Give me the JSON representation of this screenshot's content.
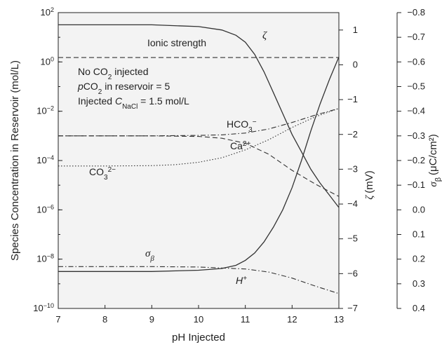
{
  "chart_data": {
    "type": "line",
    "title": "",
    "xlabel": "pH Injected",
    "xlim": [
      7,
      13
    ],
    "x_ticks": [
      "7",
      "8",
      "9",
      "10",
      "11",
      "12",
      "13"
    ],
    "axes": {
      "left": {
        "label_main": "Species Concentration in Reservoir (mol/L)",
        "scale": "log",
        "lim": [
          1e-10,
          100
        ],
        "ticks": [
          {
            "base": "10",
            "exp": "2",
            "value": 100
          },
          {
            "base": "10",
            "exp": "0",
            "value": 1
          },
          {
            "base": "10",
            "exp": "−2",
            "value": 0.01
          },
          {
            "base": "10",
            "exp": "−4",
            "value": 0.0001
          },
          {
            "base": "10",
            "exp": "−6",
            "value": 1e-06
          },
          {
            "base": "10",
            "exp": "−8",
            "value": 1e-08
          },
          {
            "base": "10",
            "exp": "−10",
            "value": 1e-10
          }
        ]
      },
      "middle": {
        "label_symbol": "ζ",
        "label_unit": "(mV)",
        "scale": "linear",
        "lim": [
          -7,
          1.5
        ],
        "ticks": [
          "1",
          "0",
          "−1",
          "−2",
          "−3",
          "−4",
          "−5",
          "−6",
          "−7"
        ],
        "tick_values": [
          1,
          0,
          -1,
          -2,
          -3,
          -4,
          -5,
          -6,
          -7
        ]
      },
      "right": {
        "label_symbol": "σ",
        "label_sub": "β",
        "label_unit": "(μC/cm²)",
        "scale": "linear",
        "inverted": true,
        "lim": [
          0.4,
          -0.8
        ],
        "ticks": [
          "−0.8",
          "−0.7",
          "−0.6",
          "−0.5",
          "−0.4",
          "−0.3",
          "−0.2",
          "−0.1",
          "0.0",
          "0.1",
          "0.2",
          "0.3",
          "0.4"
        ],
        "tick_values": [
          -0.8,
          -0.7,
          -0.6,
          -0.5,
          -0.4,
          -0.3,
          -0.2,
          -0.1,
          0.0,
          0.1,
          0.2,
          0.3,
          0.4
        ]
      }
    },
    "annotations": {
      "line1": "No CO",
      "line1_sub": "2",
      "line1_end": " injected",
      "line2_italic": "p",
      "line2_a": "CO",
      "line2_sub": "2",
      "line2_end": " in reservoir = 5",
      "line3_a": "Injected ",
      "line3_italic": "C",
      "line3_sub": "NaCl",
      "line3_end": " = 1.5 mol/L"
    },
    "series": [
      {
        "name": "Ionic strength",
        "axis": "left",
        "style": "dashed",
        "x": [
          7,
          13
        ],
        "y": [
          1.5,
          1.5
        ]
      },
      {
        "name": "ζ",
        "axis": "middle",
        "style": "solid",
        "x": [
          7,
          9,
          10,
          10.5,
          10.8,
          11,
          11.2,
          11.4,
          11.6,
          11.8,
          12,
          12.2,
          12.4,
          12.6,
          12.8,
          13
        ],
        "y": [
          1.15,
          1.15,
          1.1,
          1.0,
          0.85,
          0.65,
          0.3,
          -0.2,
          -0.8,
          -1.4,
          -2.0,
          -2.5,
          -3.0,
          -3.4,
          -3.75,
          -4.1
        ]
      },
      {
        "name": "σβ",
        "axis": "right",
        "style": "solid",
        "x": [
          7,
          9,
          10,
          10.5,
          10.8,
          11,
          11.2,
          11.4,
          11.6,
          11.8,
          12,
          12.2,
          12.4,
          12.6,
          12.8,
          13
        ],
        "y": [
          0.25,
          0.25,
          0.245,
          0.238,
          0.225,
          0.205,
          0.175,
          0.13,
          0.07,
          0.0,
          -0.09,
          -0.2,
          -0.32,
          -0.43,
          -0.53,
          -0.62
        ]
      },
      {
        "name": "HCO3−",
        "label_main": "HCO",
        "label_sub": "3",
        "label_sup": "−",
        "axis": "left",
        "style": "dashdot",
        "x": [
          7,
          9,
          10,
          10.5,
          11,
          11.5,
          12,
          12.5,
          13
        ],
        "y": [
          0.001,
          0.001,
          0.00105,
          0.0011,
          0.0013,
          0.0019,
          0.0035,
          0.007,
          0.013
        ]
      },
      {
        "name": "Ca2+",
        "label_main": "Ca",
        "label_sup": "2+",
        "axis": "left",
        "style": "dashed",
        "x": [
          7,
          9,
          10,
          10.5,
          11,
          11.5,
          12,
          12.5,
          13
        ],
        "y": [
          0.001,
          0.001,
          0.00095,
          0.0008,
          0.0005,
          0.00018,
          4e-05,
          1.1e-05,
          3.5e-06
        ]
      },
      {
        "name": "CO32−",
        "label_main": "CO",
        "label_sub": "3",
        "label_sup": "2−",
        "axis": "left",
        "style": "dotted",
        "x": [
          7,
          8,
          9,
          9.5,
          10,
          10.5,
          11,
          11.5,
          12,
          12.5,
          13
        ],
        "y": [
          6e-05,
          6e-05,
          6.2e-05,
          6.8e-05,
          8.5e-05,
          0.00013,
          0.00027,
          0.0007,
          0.0022,
          0.006,
          0.013
        ]
      },
      {
        "name": "H+",
        "label_main": "H",
        "label_sup": "+",
        "axis": "left",
        "style": "dashdot",
        "x": [
          7,
          9,
          10,
          11,
          11.5,
          12,
          12.5,
          13
        ],
        "y": [
          5e-09,
          5e-09,
          4.8e-09,
          4e-09,
          3e-09,
          1.7e-09,
          8e-10,
          4e-10
        ]
      }
    ]
  }
}
